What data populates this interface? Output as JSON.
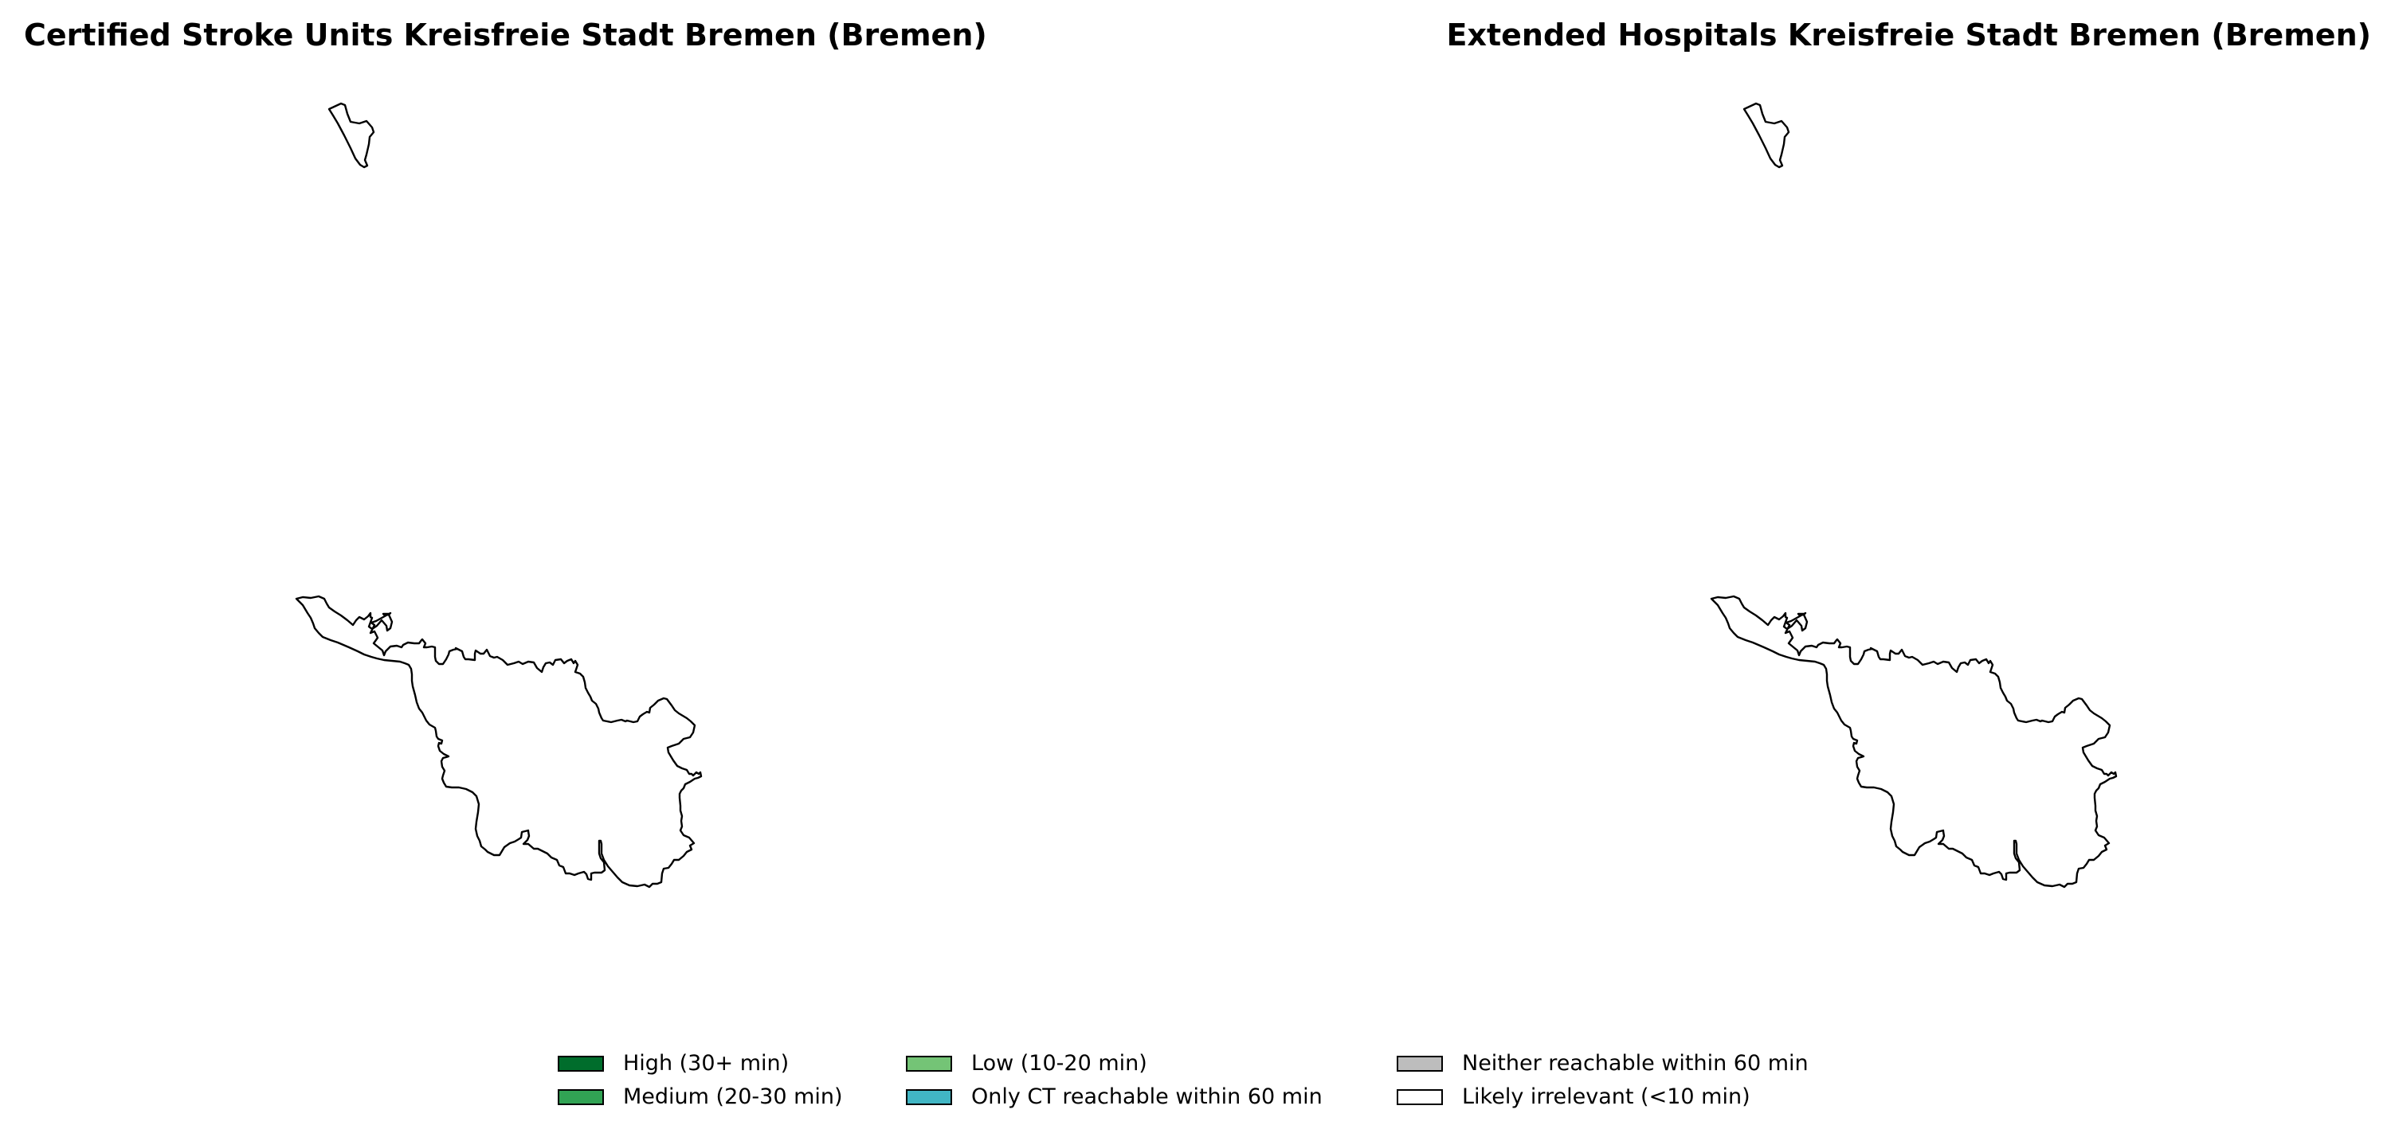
{
  "panels": [
    {
      "title": "Certified Stroke Units Kreisfreie Stadt Bremen (Bremen)"
    },
    {
      "title": "Extended Hospitals Kreisfreie Stadt Bremen (Bremen)"
    }
  ],
  "map_regions": [
    {
      "name": "Bremerhaven",
      "category": "Likely irrelevant (<10 min)"
    },
    {
      "name": "Bremen",
      "category": "Likely irrelevant (<10 min)"
    }
  ],
  "legend": {
    "items": [
      {
        "label": "High (30+ min)",
        "color": "#006d2c"
      },
      {
        "label": "Medium (20-30 min)",
        "color": "#31a354"
      },
      {
        "label": "Low (10-20 min)",
        "color": "#74c476"
      },
      {
        "label": "Only CT reachable within 60 min",
        "color": "#41b6c4"
      },
      {
        "label": "Neither reachable within 60 min",
        "color": "#bdbdbd"
      },
      {
        "label": "Likely irrelevant (<10 min)",
        "color": "#ffffff"
      }
    ]
  }
}
